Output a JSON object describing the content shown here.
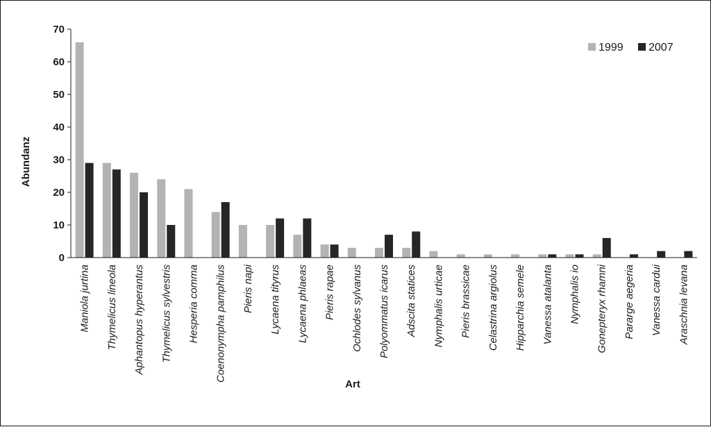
{
  "chart_data": {
    "type": "bar",
    "title": "",
    "xlabel": "Art",
    "ylabel": "Abundanz",
    "ylim": [
      0,
      70
    ],
    "yticks": [
      0,
      10,
      20,
      30,
      40,
      50,
      60,
      70
    ],
    "grid": false,
    "legend_position": "top-right",
    "categories": [
      "Maniola jurtina",
      "Thymelicus lineola",
      "Aphantopus hyperantus",
      "Thymelicus sylvestris",
      "Hesperia comma",
      "Coenonympha pamphilus",
      "Pieris napi",
      "Lycaena tityrus",
      "Lycaena phlaeas",
      "Pieris rapae",
      "Ochlodes sylvanus",
      "Polyommatus icarus",
      "Adscita statices",
      "Nymphalis urticae",
      "Pieris brassicae",
      "Celastrina argiolus",
      "Hipparchia semele",
      "Vanessa atalanta",
      "Nymphalis io",
      "Gonepteryx rhamni",
      "Pararge aegeria",
      "Vanessa cardui",
      "Araschnia levana"
    ],
    "series": [
      {
        "name": "1999",
        "color": "#b3b3b3",
        "values": [
          66,
          29,
          26,
          24,
          21,
          14,
          10,
          10,
          7,
          4,
          3,
          3,
          3,
          2,
          1,
          1,
          1,
          1,
          1,
          1,
          0,
          0,
          0
        ]
      },
      {
        "name": "2007",
        "color": "#262626",
        "values": [
          29,
          27,
          20,
          10,
          0,
          17,
          0,
          12,
          12,
          4,
          0,
          7,
          8,
          0,
          0,
          0,
          0,
          1,
          1,
          6,
          1,
          2,
          2
        ]
      }
    ]
  }
}
